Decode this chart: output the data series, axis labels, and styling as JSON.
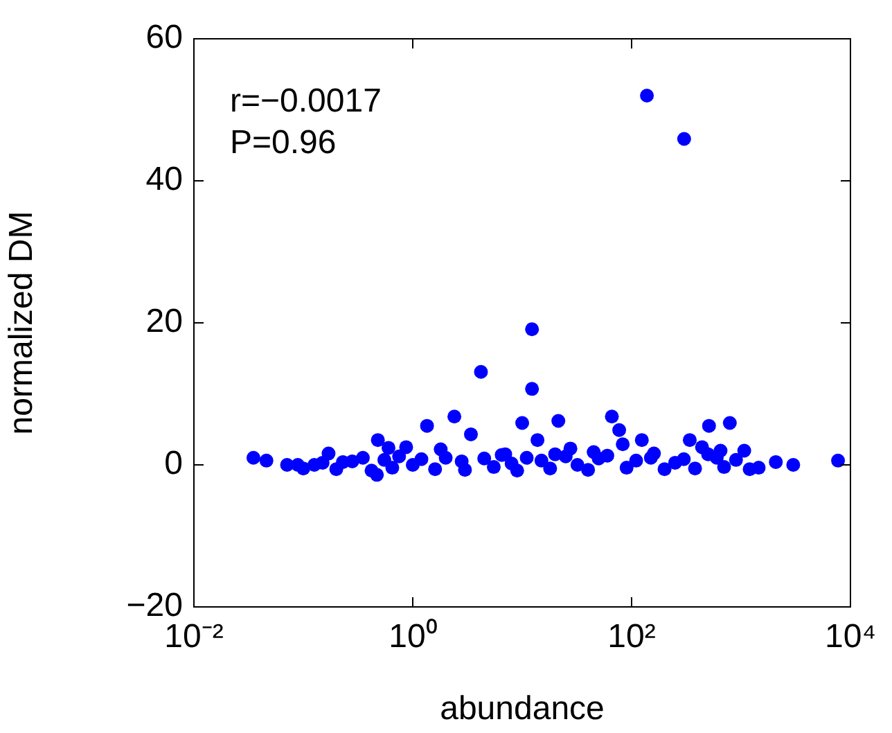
{
  "chart_data": {
    "type": "scatter",
    "xlabel": "abundance",
    "ylabel": "normalized DM",
    "annotations": [
      "r=−0.0017",
      "P=0.96"
    ],
    "log": "x",
    "grid": false,
    "legend": false,
    "marker": "circle",
    "xlim": [
      0.01,
      10000
    ],
    "xticks": [
      {
        "value": 0.01,
        "label": "10⁻²"
      },
      {
        "value": 1,
        "label": "10⁰"
      },
      {
        "value": 100,
        "label": "10²"
      },
      {
        "value": 10000,
        "label": "10⁴"
      }
    ],
    "ylim": [
      -20,
      60
    ],
    "yticks": [
      {
        "value": -20,
        "label": "−20"
      },
      0,
      20,
      40,
      60
    ],
    "series": [
      {
        "color": "#0000ff",
        "x": [
          138,
          302,
          12.3,
          4.2,
          12.3,
          0.035,
          0.046,
          0.071,
          0.089,
          0.126,
          0.17,
          0.23,
          0.48,
          0.47,
          0.87,
          1.35,
          2.4,
          3.4,
          10,
          13.8,
          21.4,
          27.6,
          66,
          77,
          83,
          124,
          340,
          440,
          510,
          790,
          650,
          1070,
          1450,
          2080,
          3000,
          7700,
          0.1,
          0.15,
          0.2,
          0.28,
          0.35,
          0.42,
          0.55,
          0.65,
          0.75,
          1.0,
          1.2,
          1.6,
          2.0,
          2.8,
          3.0,
          4.5,
          5.5,
          6.5,
          8,
          9,
          11,
          15,
          18,
          25,
          32,
          40,
          50,
          60,
          90,
          110,
          150,
          200,
          250,
          300,
          380,
          600,
          700,
          900,
          1200,
          0.6,
          1.8,
          7,
          20,
          45,
          160,
          500
        ],
        "values": [
          52,
          45.9,
          19.1,
          13.1,
          10.7,
          1.0,
          0.6,
          0,
          0,
          0,
          1.6,
          0.4,
          3.5,
          -1.4,
          2.5,
          5.5,
          6.8,
          4.3,
          5.9,
          3.5,
          6.2,
          2.3,
          6.8,
          4.9,
          2.9,
          3.5,
          3.5,
          2.5,
          5.5,
          5.9,
          2.0,
          2.0,
          -0.4,
          0.4,
          0,
          0.6,
          -0.5,
          0.3,
          -0.6,
          0.5,
          1,
          -0.8,
          0.7,
          -0.4,
          1.2,
          0,
          0.8,
          -0.6,
          1,
          0.5,
          -0.7,
          0.9,
          -0.3,
          1.4,
          0.2,
          -0.8,
          1,
          0.6,
          -0.5,
          1.2,
          0,
          -0.7,
          0.9,
          1.3,
          -0.4,
          0.6,
          1,
          -0.6,
          0.3,
          0.8,
          -0.5,
          1,
          -0.3,
          0.7,
          -0.6,
          2.4,
          2.2,
          1.5,
          1.5,
          1.8,
          1.6,
          1.5
        ]
      }
    ]
  }
}
